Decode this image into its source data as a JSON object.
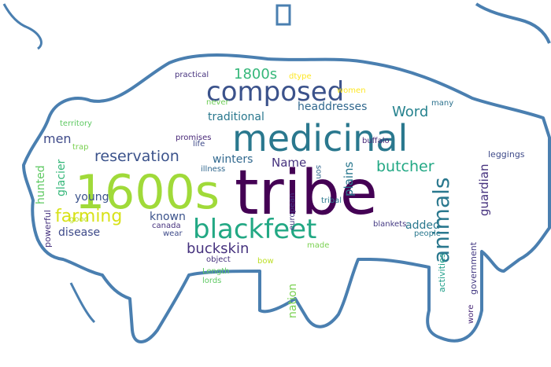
{
  "words": [
    {
      "text": "tribe",
      "color": "#440154"
    },
    {
      "text": "1600s",
      "color": "#a0da39"
    },
    {
      "text": "medicinal",
      "color": "#2a788e"
    },
    {
      "text": "composed",
      "color": "#3b528b"
    },
    {
      "text": "blackfeet",
      "color": "#22a884"
    },
    {
      "text": "animals",
      "color": "#2a788e"
    },
    {
      "text": "farming",
      "color": "#d8e219"
    },
    {
      "text": "reservation",
      "color": "#3b528b"
    },
    {
      "text": "butcher",
      "color": "#22a884"
    },
    {
      "text": "buckskin",
      "color": "#46327e"
    },
    {
      "text": "1800s",
      "color": "#35b779"
    },
    {
      "text": "Word",
      "color": "#26828e"
    },
    {
      "text": "Name",
      "color": "#46327e"
    },
    {
      "text": "traditional",
      "color": "#2a788e"
    },
    {
      "text": "headdresses",
      "color": "#31688e"
    },
    {
      "text": "men",
      "color": "#3e4a89"
    },
    {
      "text": "winters",
      "color": "#31688e"
    },
    {
      "text": "plains",
      "color": "#2a788e"
    },
    {
      "text": "guardian",
      "color": "#46327e"
    },
    {
      "text": "young",
      "color": "#3b528b"
    },
    {
      "text": "known",
      "color": "#3b528b"
    },
    {
      "text": "disease",
      "color": "#3e4a89"
    },
    {
      "text": "added",
      "color": "#2a788e"
    },
    {
      "text": "glacier",
      "color": "#35b779"
    },
    {
      "text": "hunted",
      "color": "#5ec962"
    },
    {
      "text": "nation",
      "color": "#7ad151"
    },
    {
      "text": "activities",
      "color": "#1f9e89"
    },
    {
      "text": "government",
      "color": "#443a83"
    },
    {
      "text": "powerful",
      "color": "#46327e"
    },
    {
      "text": "leggings",
      "color": "#3e4a89"
    },
    {
      "text": "practical",
      "color": "#46327e"
    },
    {
      "text": "dtype",
      "color": "#fde725"
    },
    {
      "text": "women",
      "color": "#fde725"
    },
    {
      "text": "never",
      "color": "#6ece58"
    },
    {
      "text": "many",
      "color": "#2c728e"
    },
    {
      "text": "territory",
      "color": "#5ec962"
    },
    {
      "text": "trap",
      "color": "#7ad151"
    },
    {
      "text": "good",
      "color": "#bddf26"
    },
    {
      "text": "promises",
      "color": "#482878"
    },
    {
      "text": "life",
      "color": "#3e4a89"
    },
    {
      "text": "illness",
      "color": "#31688e"
    },
    {
      "text": "canada",
      "color": "#46327e"
    },
    {
      "text": "wear",
      "color": "#3e4a89"
    },
    {
      "text": "object",
      "color": "#46327e"
    },
    {
      "text": "Length",
      "color": "#5ec962"
    },
    {
      "text": "lords",
      "color": "#5ec962"
    },
    {
      "text": "bow",
      "color": "#bddf26"
    },
    {
      "text": "made",
      "color": "#7ad151"
    },
    {
      "text": "buffalo",
      "color": "#482878"
    },
    {
      "text": "son",
      "color": "#31688e"
    },
    {
      "text": "european",
      "color": "#443a83"
    },
    {
      "text": "tribal",
      "color": "#2a788e"
    },
    {
      "text": "blankets",
      "color": "#443a83"
    },
    {
      "text": "people",
      "color": "#2a788e"
    },
    {
      "text": "wore",
      "color": "#482878"
    }
  ],
  "outline_color": "#4a7fb0"
}
